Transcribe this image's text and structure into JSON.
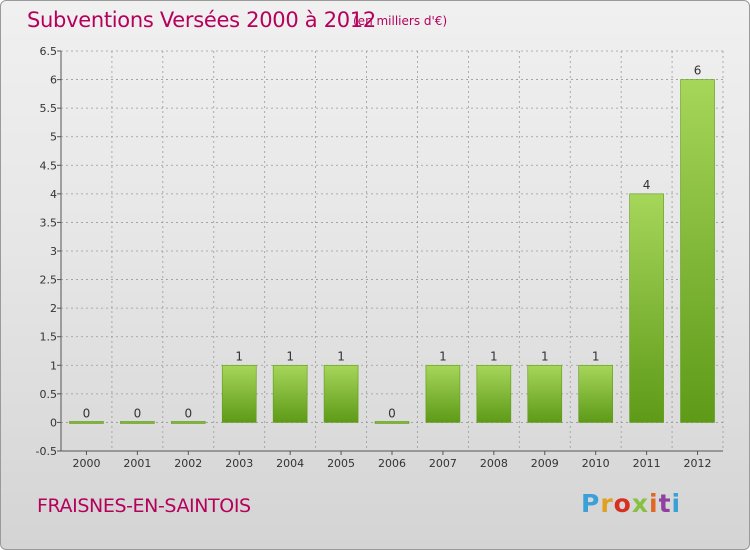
{
  "title": "Subventions Versées 2000 à 2012",
  "subtitle": "(en milliers d'€)",
  "place": "FRAISNES-EN-SAINTOIS",
  "logo": "Proxiti",
  "colors": {
    "title": "#b5005c",
    "bar_light": "#a6d65a",
    "bar_dark": "#5e9a18",
    "grid": "#9a9a9a"
  },
  "chart_data": {
    "type": "bar",
    "title": "Subventions Versées 2000 à 2012",
    "subtitle": "(en milliers d'€)",
    "xlabel": "",
    "ylabel": "",
    "categories": [
      "2000",
      "2001",
      "2002",
      "2003",
      "2004",
      "2005",
      "2006",
      "2007",
      "2008",
      "2009",
      "2010",
      "2011",
      "2012"
    ],
    "values": [
      0,
      0,
      0,
      1,
      1,
      1,
      0,
      1,
      1,
      1,
      1,
      4,
      6
    ],
    "data_labels": [
      "0",
      "0",
      "0",
      "1",
      "1",
      "1",
      "0",
      "1",
      "1",
      "1",
      "1",
      "4",
      "6"
    ],
    "ylim": [
      -0.5,
      6.5
    ],
    "yticks": [
      -0.5,
      0,
      0.5,
      1,
      1.5,
      2,
      2.5,
      3,
      3.5,
      4,
      4.5,
      5,
      5.5,
      6,
      6.5
    ],
    "ytick_labels": [
      "-0.5",
      "0",
      "0.5",
      "1",
      "1.5",
      "2",
      "2.5",
      "3",
      "3.5",
      "4",
      "4.5",
      "5",
      "5.5",
      "6",
      "6.5"
    ],
    "grid": true
  }
}
